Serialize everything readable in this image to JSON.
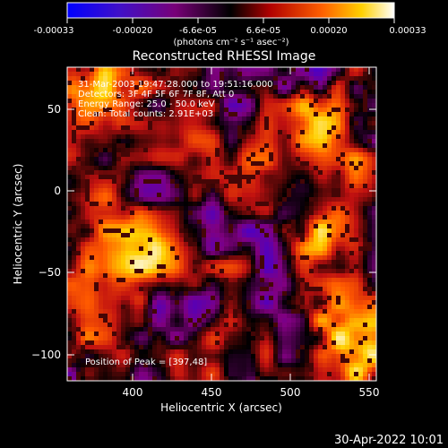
{
  "colorbar": {
    "ticks": [
      "-0.00033",
      "-0.00020",
      "-6.6e-05",
      "6.6e-05",
      "0.00020",
      "0.00033"
    ],
    "unit_label": "(photons cm⁻² s⁻¹ asec⁻²)",
    "range": [
      -0.00033,
      0.00033
    ]
  },
  "plot": {
    "title": "Reconstructed RHESSI Image",
    "xlabel": "Heliocentric X (arcsec)",
    "ylabel": "Heliocentric Y (arcsec)",
    "xticks": [
      "400",
      "450",
      "500",
      "550"
    ],
    "yticks": [
      "50",
      "0",
      "−50",
      "−100"
    ],
    "xrange": [
      363,
      553
    ],
    "yrange": [
      -117,
      76
    ]
  },
  "info": {
    "line1": "31-Mar-2003 19:47:28.000 to 19:51:16.000",
    "line2": "Detectors: 3F 4F 5F 6F 7F 8F, Att 0",
    "line3": "Energy Range: 25.0 - 50.0 keV",
    "line4": "Clean: Total counts: 2.91E+03",
    "peak": "Position of Peak = [397,48]"
  },
  "footer": {
    "date": "30-Apr-2022 10:01"
  },
  "image": {
    "colormap": [
      "#0000ff",
      "#5000c0",
      "#800080",
      "#000000",
      "#c01010",
      "#ff5a00",
      "#ffd000",
      "#ffffff"
    ],
    "hotspots": [
      {
        "x": 385,
        "y": 55,
        "amp": 1.0
      },
      {
        "x": 410,
        "y": -42,
        "amp": 1.0
      },
      {
        "x": 440,
        "y": 40,
        "amp": 0.6
      },
      {
        "x": 525,
        "y": 40,
        "amp": 0.7
      },
      {
        "x": 540,
        "y": 10,
        "amp": 0.6
      },
      {
        "x": 520,
        "y": -25,
        "amp": 0.7
      },
      {
        "x": 530,
        "y": -75,
        "amp": 0.75
      },
      {
        "x": 545,
        "y": -100,
        "amp": 0.8
      },
      {
        "x": 460,
        "y": -95,
        "amp": 0.55
      },
      {
        "x": 385,
        "y": -15,
        "amp": 0.65
      },
      {
        "x": 470,
        "y": 5,
        "amp": 0.55
      },
      {
        "x": 385,
        "y": -75,
        "amp": 0.5
      }
    ]
  }
}
